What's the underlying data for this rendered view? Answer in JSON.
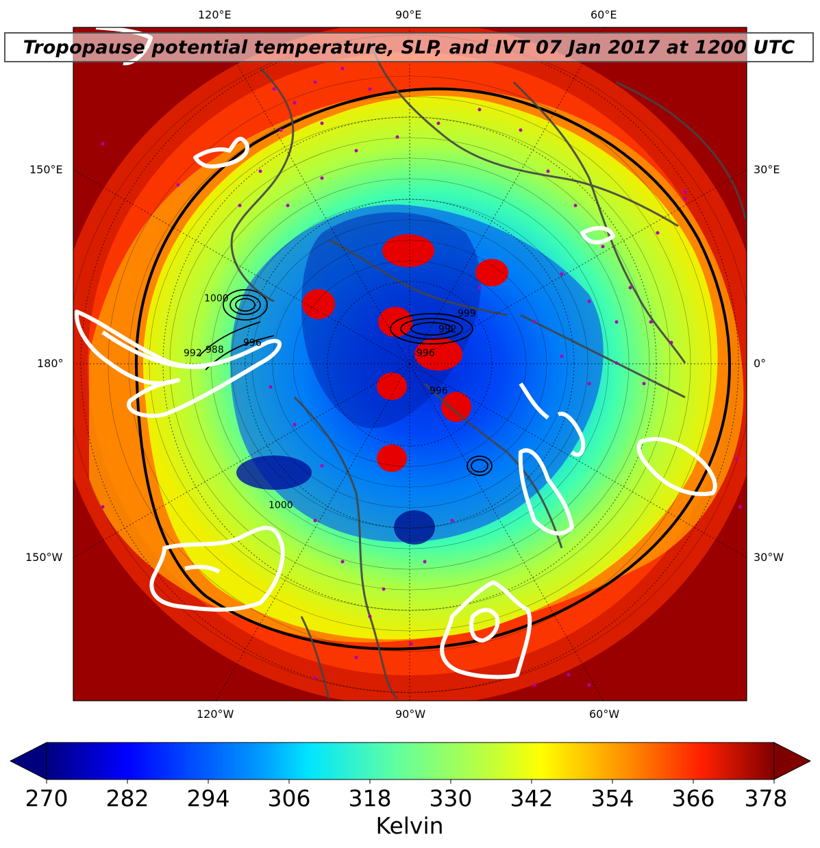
{
  "title": "Tropopause potential temperature, SLP, and IVT 07 Jan 2017 at 1200 UTC",
  "map_labels": {
    "top": [
      "120°E",
      "90°E",
      "60°E"
    ],
    "bottom": [
      "120°W",
      "90°W",
      "60°W"
    ],
    "left": [
      "150°E",
      "180°",
      "150°W"
    ],
    "right": [
      "30°E",
      "0°",
      "30°W"
    ]
  },
  "contour_labels": [
    "1000",
    "996",
    "992",
    "988",
    "996",
    "999",
    "992",
    "996",
    "1000"
  ],
  "colorbar": {
    "label": "Kelvin",
    "ticks": [
      "270",
      "282",
      "294",
      "306",
      "318",
      "330",
      "342",
      "354",
      "366",
      "378"
    ],
    "range": [
      270,
      378
    ],
    "extend": "both",
    "colormap": "jet",
    "colors": [
      "#00007f",
      "#0000ff",
      "#007fff",
      "#00ffff",
      "#7fff7f",
      "#ffff00",
      "#ff7f00",
      "#ff0000",
      "#7f0000"
    ]
  },
  "overlay_colors": {
    "coastline": "#444444",
    "ivt_contour": "#ffffff",
    "slp_contour": "#000000",
    "station_markers": "#b000b0"
  }
}
